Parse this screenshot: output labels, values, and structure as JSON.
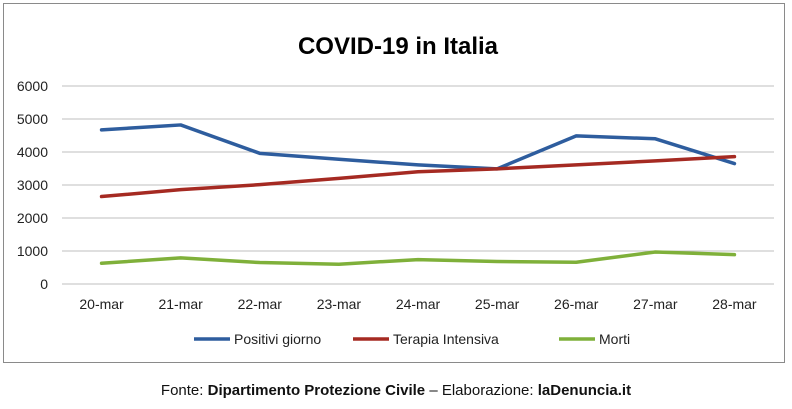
{
  "chart_data": {
    "type": "line",
    "title": "COVID-19 in Italia",
    "categories": [
      "20-mar",
      "21-mar",
      "22-mar",
      "23-mar",
      "24-mar",
      "25-mar",
      "26-mar",
      "27-mar",
      "28-mar"
    ],
    "ylim": [
      0,
      6000
    ],
    "yticks": [
      0,
      1000,
      2000,
      3000,
      4000,
      5000,
      6000
    ],
    "grid": true,
    "legend_position": "bottom",
    "series": [
      {
        "name": "Positivi giorno",
        "color": "#2e5d9e",
        "values": [
          4670,
          4820,
          3960,
          3780,
          3610,
          3490,
          4490,
          4400,
          3650
        ]
      },
      {
        "name": "Terapia Intensiva",
        "color": "#a52a22",
        "values": [
          2650,
          2860,
          3010,
          3200,
          3400,
          3490,
          3610,
          3730,
          3860
        ]
      },
      {
        "name": "Morti",
        "color": "#7fb03a",
        "values": [
          630,
          790,
          650,
          600,
          740,
          680,
          660,
          970,
          890
        ]
      }
    ]
  },
  "footer": {
    "prefix": "Fonte: ",
    "source": "Dipartimento Protezione Civile",
    "middle": " – Elaborazione: ",
    "author": "laDenuncia.it"
  }
}
